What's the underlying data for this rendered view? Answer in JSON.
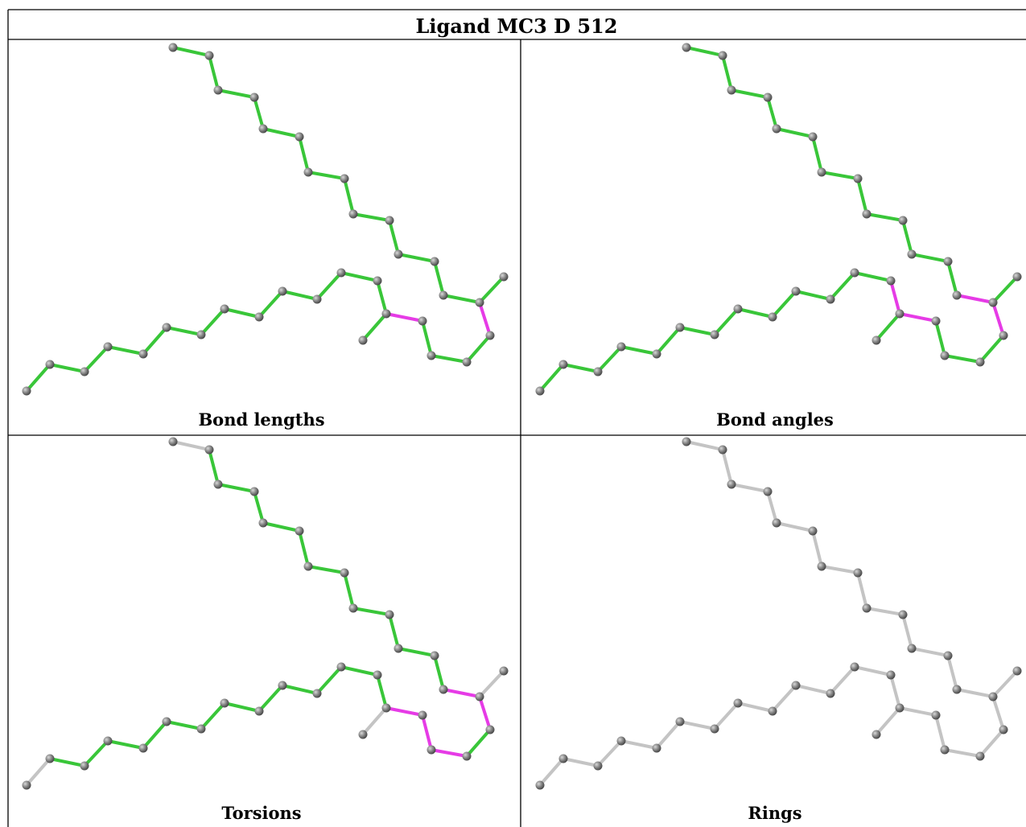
{
  "title": "Ligand MC3 D 512",
  "panels": [
    {
      "caption": "Bond lengths"
    },
    {
      "caption": "Bond angles"
    },
    {
      "caption": "Torsions"
    },
    {
      "caption": "Rings"
    }
  ],
  "colors": {
    "ok": "#39c639",
    "outlier": "#e63be6",
    "neutral": "#c4c4c4",
    "atom": "#7d7d7d"
  }
}
